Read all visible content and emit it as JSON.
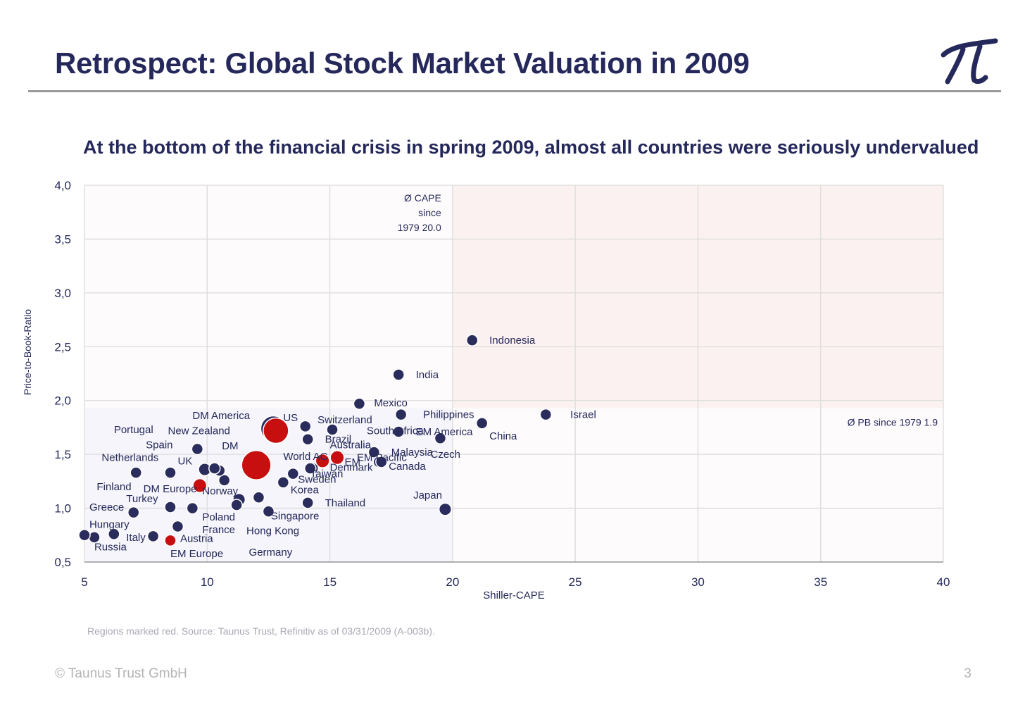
{
  "header": {
    "title": "Retrospect: Global Stock Market Valuation in 2009",
    "subtitle": "At the bottom of the financial crisis in spring 2009, almost all countries were seriously undervalued"
  },
  "footer": {
    "source": "Regions marked red. Source: Taunus Trust, Refinitiv as of 03/31/2009 (A-003b).",
    "copyright": "© Taunus Trust GmbH",
    "page": "3"
  },
  "colors": {
    "navy": "#25285a",
    "country_dot": "#2a2c5c",
    "region_dot": "#c80f0f",
    "high_zone": "#fcf1f1",
    "low_zone": "#f5f5fb",
    "grid": "#dcdcdc"
  },
  "chart_data": {
    "type": "scatter",
    "xlabel": "Shiller-CAPE",
    "ylabel": "Price-to-Book-Ratio",
    "xlim": [
      5,
      40
    ],
    "ylim": [
      0.5,
      4.0
    ],
    "xticks": [
      5,
      10,
      15,
      20,
      25,
      30,
      35,
      40
    ],
    "yticks": [
      0.5,
      1.0,
      1.5,
      2.0,
      2.5,
      3.0,
      3.5,
      4.0
    ],
    "ytick_labels": [
      "0,5",
      "1,0",
      "1,5",
      "2,0",
      "2,5",
      "3,0",
      "3,5",
      "4,0"
    ],
    "grid": true,
    "reference_lines": {
      "cape": {
        "value": 20.0,
        "label_lines": [
          "Ø CAPE",
          "since",
          "1979 20.0"
        ]
      },
      "pb": {
        "value": 1.93,
        "label": "Ø PB since 1979 1.9"
      }
    },
    "points": [
      {
        "name": "Indonesia",
        "x": 20.8,
        "y": 2.56,
        "region": false,
        "size": 1
      },
      {
        "name": "India",
        "x": 17.8,
        "y": 2.24,
        "region": false,
        "size": 1
      },
      {
        "name": "Israel",
        "x": 23.8,
        "y": 1.87,
        "region": false,
        "size": 1
      },
      {
        "name": "Mexico",
        "x": 16.2,
        "y": 1.97,
        "region": false,
        "size": 1
      },
      {
        "name": "Philippines",
        "x": 17.9,
        "y": 1.87,
        "region": false,
        "size": 1
      },
      {
        "name": "China",
        "x": 21.2,
        "y": 1.79,
        "region": false,
        "size": 1
      },
      {
        "name": "EM America",
        "x": 17.8,
        "y": 1.71,
        "region": true,
        "size": 1
      },
      {
        "name": "South Africa",
        "x": 17.8,
        "y": 1.71,
        "region": false,
        "size": 1
      },
      {
        "name": "Czech",
        "x": 19.5,
        "y": 1.65,
        "region": false,
        "size": 1
      },
      {
        "name": "Switzerland",
        "x": 15.1,
        "y": 1.73,
        "region": false,
        "size": 1
      },
      {
        "name": "US",
        "x": 12.7,
        "y": 1.74,
        "region": false,
        "size": 3
      },
      {
        "name": "DM America",
        "x": 12.8,
        "y": 1.72,
        "region": true,
        "size": 3
      },
      {
        "name": "Brazil",
        "x": 14.0,
        "y": 1.76,
        "region": false,
        "size": 1
      },
      {
        "name": "Australia",
        "x": 14.1,
        "y": 1.64,
        "region": false,
        "size": 1
      },
      {
        "name": "Malaysia",
        "x": 16.8,
        "y": 1.52,
        "region": false,
        "size": 1
      },
      {
        "name": "EM Pacific",
        "x": 17.0,
        "y": 1.43,
        "region": false,
        "size": 1
      },
      {
        "name": "Canada",
        "x": 17.1,
        "y": 1.43,
        "region": false,
        "size": 1
      },
      {
        "name": "EM",
        "x": 15.3,
        "y": 1.47,
        "region": true,
        "size": 1.5
      },
      {
        "name": "World AC",
        "x": 14.7,
        "y": 1.44,
        "region": true,
        "size": 1.5
      },
      {
        "name": "Denmark",
        "x": 14.3,
        "y": 1.37,
        "region": false,
        "size": 1
      },
      {
        "name": "Taiwan",
        "x": 14.2,
        "y": 1.37,
        "region": false,
        "size": 1
      },
      {
        "name": "Sweden",
        "x": 13.5,
        "y": 1.32,
        "region": false,
        "size": 1
      },
      {
        "name": "Korea",
        "x": 13.1,
        "y": 1.24,
        "region": false,
        "size": 1
      },
      {
        "name": "DM",
        "x": 12.0,
        "y": 1.4,
        "region": true,
        "size": 4
      },
      {
        "name": "Thailand",
        "x": 14.1,
        "y": 1.05,
        "region": false,
        "size": 1
      },
      {
        "name": "Singapore",
        "x": 12.5,
        "y": 0.97,
        "region": false,
        "size": 1
      },
      {
        "name": "Hong Kong",
        "x": 12.1,
        "y": 1.1,
        "region": false,
        "size": 1
      },
      {
        "name": "Germany",
        "x": 11.3,
        "y": 1.08,
        "region": false,
        "size": 1.2
      },
      {
        "name": "France",
        "x": 11.2,
        "y": 1.03,
        "region": false,
        "size": 1
      },
      {
        "name": "Poland",
        "x": 9.4,
        "y": 1.0,
        "region": false,
        "size": 1
      },
      {
        "name": "Japan",
        "x": 19.7,
        "y": 0.99,
        "region": false,
        "size": 1.2
      },
      {
        "name": "Norway",
        "x": 10.7,
        "y": 1.26,
        "region": false,
        "size": 1
      },
      {
        "name": "UK",
        "x": 9.9,
        "y": 1.36,
        "region": false,
        "size": 1.2
      },
      {
        "name": "Spain",
        "x": 9.6,
        "y": 1.55,
        "region": false,
        "size": 1
      },
      {
        "name": "New Zealand",
        "x": 10.5,
        "y": 1.35,
        "region": false,
        "size": 1
      },
      {
        "name": "Portugal",
        "x": 10.3,
        "y": 1.37,
        "region": false,
        "size": 1
      },
      {
        "name": "Netherlands",
        "x": 8.5,
        "y": 1.33,
        "region": false,
        "size": 1
      },
      {
        "name": "DM Europe",
        "x": 9.7,
        "y": 1.21,
        "region": true,
        "size": 1.5
      },
      {
        "name": "Finland",
        "x": 7.1,
        "y": 1.33,
        "region": false,
        "size": 1
      },
      {
        "name": "Turkey",
        "x": 8.5,
        "y": 1.01,
        "region": false,
        "size": 1
      },
      {
        "name": "Greece",
        "x": 7.0,
        "y": 0.96,
        "region": false,
        "size": 1
      },
      {
        "name": "Hungary",
        "x": 8.8,
        "y": 0.83,
        "region": false,
        "size": 1
      },
      {
        "name": "Italy",
        "x": 7.8,
        "y": 0.74,
        "region": false,
        "size": 1
      },
      {
        "name": "Austria",
        "x": 8.5,
        "y": 0.7,
        "region": true,
        "size": 1
      },
      {
        "name": "EM Europe",
        "x": 6.2,
        "y": 0.76,
        "region": false,
        "size": 1
      },
      {
        "name": "Russia",
        "x": 5.4,
        "y": 0.73,
        "region": false,
        "size": 1
      },
      {
        "name": "Russia-2",
        "x": 5.0,
        "y": 0.75,
        "region": false,
        "size": 1
      }
    ],
    "labels": [
      {
        "text": "Indonesia",
        "x": 21.5,
        "y": 2.56
      },
      {
        "text": "India",
        "x": 18.5,
        "y": 2.24
      },
      {
        "text": "Israel",
        "x": 24.8,
        "y": 1.87
      },
      {
        "text": "Mexico",
        "x": 16.8,
        "y": 1.98
      },
      {
        "text": "Philippines",
        "x": 18.8,
        "y": 1.87
      },
      {
        "text": "China",
        "x": 21.5,
        "y": 1.67
      },
      {
        "text": "EM America",
        "x": 18.5,
        "y": 1.71
      },
      {
        "text": "South Africa",
        "x": 16.5,
        "y": 1.72
      },
      {
        "text": "Czech",
        "x": 19.1,
        "y": 1.5
      },
      {
        "text": "Switzerland",
        "x": 14.5,
        "y": 1.82
      },
      {
        "text": "US",
        "x": 13.1,
        "y": 1.84
      },
      {
        "text": "DM America",
        "x": 9.4,
        "y": 1.86
      },
      {
        "text": "Portugal",
        "x": 6.2,
        "y": 1.73
      },
      {
        "text": "New Zealand",
        "x": 8.4,
        "y": 1.72
      },
      {
        "text": "Brazil",
        "x": 14.8,
        "y": 1.64
      },
      {
        "text": "Australia",
        "x": 15.0,
        "y": 1.59
      },
      {
        "text": "Malaysia",
        "x": 17.5,
        "y": 1.52
      },
      {
        "text": "EM",
        "x": 15.6,
        "y": 1.43
      },
      {
        "text": "EM Pacific",
        "x": 16.1,
        "y": 1.47
      },
      {
        "text": "Canada",
        "x": 17.4,
        "y": 1.39
      },
      {
        "text": "World AC",
        "x": 13.1,
        "y": 1.48
      },
      {
        "text": "DM",
        "x": 10.6,
        "y": 1.58
      },
      {
        "text": "Denmark",
        "x": 15.0,
        "y": 1.38
      },
      {
        "text": "Taiwan",
        "x": 14.2,
        "y": 1.32
      },
      {
        "text": "Sweden",
        "x": 13.7,
        "y": 1.27
      },
      {
        "text": "Korea",
        "x": 13.4,
        "y": 1.17
      },
      {
        "text": "Spain",
        "x": 7.5,
        "y": 1.59
      },
      {
        "text": "Netherlands",
        "x": 5.7,
        "y": 1.47
      },
      {
        "text": "UK",
        "x": 8.8,
        "y": 1.44
      },
      {
        "text": "Finland",
        "x": 5.5,
        "y": 1.2
      },
      {
        "text": "DM Europe",
        "x": 7.4,
        "y": 1.18
      },
      {
        "text": "Norway",
        "x": 9.8,
        "y": 1.16
      },
      {
        "text": "Turkey",
        "x": 6.7,
        "y": 1.09
      },
      {
        "text": "Greece",
        "x": 5.2,
        "y": 1.01
      },
      {
        "text": "Thailand",
        "x": 14.8,
        "y": 1.05
      },
      {
        "text": "Japan",
        "x": 18.4,
        "y": 1.12
      },
      {
        "text": "Singapore",
        "x": 12.6,
        "y": 0.93
      },
      {
        "text": "Poland",
        "x": 9.8,
        "y": 0.92
      },
      {
        "text": "Hungary",
        "x": 5.2,
        "y": 0.85
      },
      {
        "text": "France",
        "x": 9.8,
        "y": 0.8
      },
      {
        "text": "Hong Kong",
        "x": 11.6,
        "y": 0.79
      },
      {
        "text": "Italy",
        "x": 6.7,
        "y": 0.73
      },
      {
        "text": "Austria",
        "x": 8.9,
        "y": 0.72
      },
      {
        "text": "Russia",
        "x": 5.4,
        "y": 0.64
      },
      {
        "text": "EM Europe",
        "x": 8.5,
        "y": 0.58
      },
      {
        "text": "Germany",
        "x": 11.7,
        "y": 0.59
      }
    ]
  }
}
